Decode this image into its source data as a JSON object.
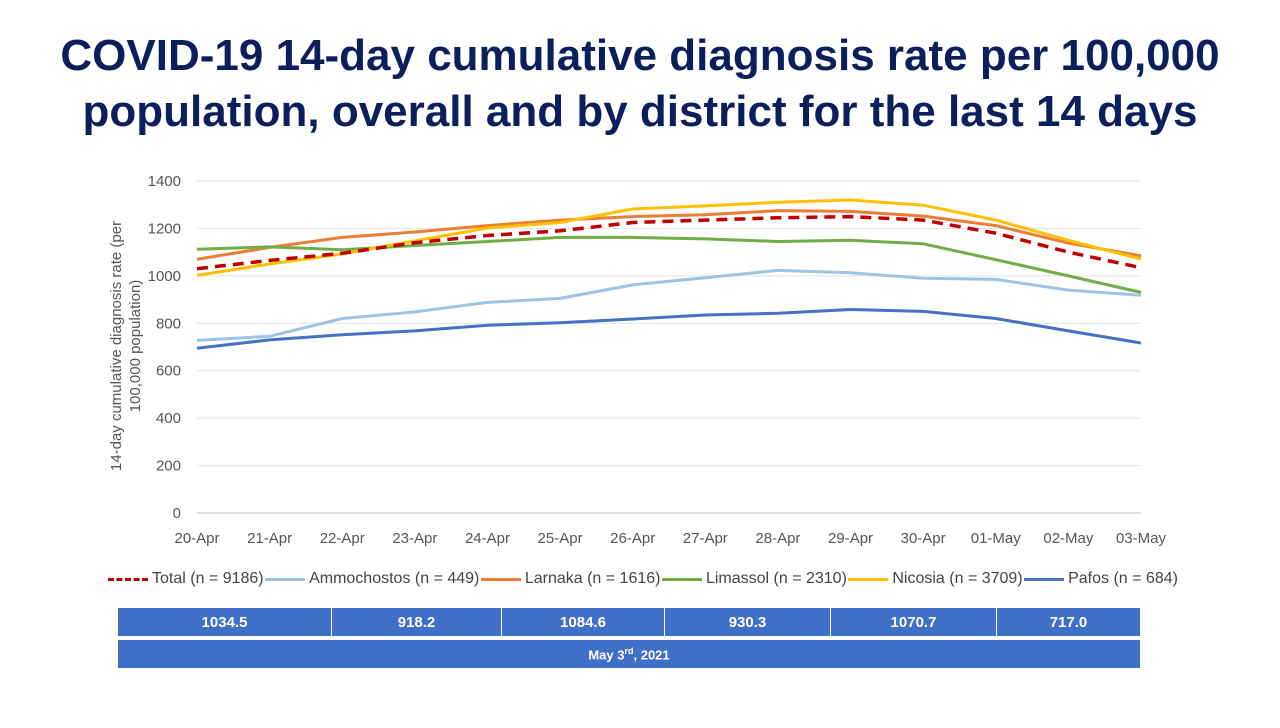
{
  "title": {
    "line1": "COVID-19 14-day cumulative diagnosis rate per 100,000",
    "line2": "population, overall and by district for the last 14 days"
  },
  "chart_data": {
    "type": "line",
    "ylabel_line1": "14-day cumulative diagnosis rate (per",
    "ylabel_line2": "100,000 population)",
    "ylim": [
      0,
      1400
    ],
    "yticks": [
      0,
      200,
      400,
      600,
      800,
      1000,
      1200,
      1400
    ],
    "grid": true,
    "legend_position": "bottom",
    "categories": [
      "20-Apr",
      "21-Apr",
      "22-Apr",
      "23-Apr",
      "24-Apr",
      "25-Apr",
      "26-Apr",
      "27-Apr",
      "28-Apr",
      "29-Apr",
      "30-Apr",
      "01-May",
      "02-May",
      "03-May"
    ],
    "series": [
      {
        "name": "Total (n = 9186)",
        "color": "#c00000",
        "dashed": true,
        "values": [
          1030,
          1065,
          1095,
          1140,
          1170,
          1190,
          1225,
          1235,
          1245,
          1250,
          1235,
          1180,
          1100,
          1034.5
        ]
      },
      {
        "name": "Ammochostos (n = 449)",
        "color": "#9dc3e6",
        "dashed": false,
        "values": [
          728,
          745,
          820,
          848,
          888,
          905,
          962,
          992,
          1023,
          1013,
          990,
          985,
          940,
          918.2
        ]
      },
      {
        "name": "Larnaka (n = 1616)",
        "color": "#ed7d31",
        "dashed": false,
        "values": [
          1070,
          1120,
          1162,
          1185,
          1212,
          1235,
          1250,
          1258,
          1275,
          1272,
          1252,
          1212,
          1138,
          1084.6
        ]
      },
      {
        "name": "Limassol (n = 2310)",
        "color": "#70ad47",
        "dashed": false,
        "values": [
          1112,
          1122,
          1110,
          1128,
          1145,
          1162,
          1162,
          1156,
          1145,
          1150,
          1135,
          1068,
          1000,
          930.3
        ]
      },
      {
        "name": "Nicosia (n = 3709)",
        "color": "#ffc000",
        "dashed": false,
        "values": [
          1002,
          1050,
          1092,
          1148,
          1202,
          1225,
          1282,
          1295,
          1310,
          1320,
          1298,
          1235,
          1150,
          1070.7
        ]
      },
      {
        "name": "Pafos (n = 684)",
        "color": "#4472c4",
        "dashed": false,
        "values": [
          695,
          730,
          752,
          768,
          792,
          802,
          818,
          835,
          842,
          858,
          850,
          820,
          768,
          717.0
        ]
      }
    ]
  },
  "table": {
    "values": [
      "1034.5",
      "918.2",
      "1084.6",
      "930.3",
      "1070.7",
      "717.0"
    ],
    "date_prefix": "May 3",
    "date_sup": "rd",
    "date_suffix": ", 2021"
  }
}
